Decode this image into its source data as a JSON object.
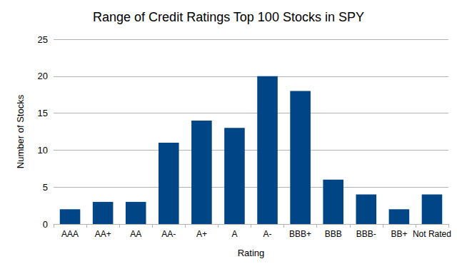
{
  "chart_data": {
    "type": "bar",
    "title": "Range of Credit Ratings Top 100 Stocks in SPY",
    "x_label": "Rating",
    "y_label": "Number of Stocks",
    "categories": [
      "AAA",
      "AA+",
      "AA",
      "AA-",
      "A+",
      "A",
      "A-",
      "BBB+",
      "BBB",
      "BBB-",
      "BB+",
      "Not Rated"
    ],
    "values": [
      2,
      3,
      3,
      11,
      14,
      13,
      20,
      18,
      6,
      4,
      2,
      4
    ],
    "color": "#004586",
    "ylim": [
      0,
      25
    ],
    "yticks": [
      0,
      5,
      10,
      15,
      20,
      25
    ],
    "grid": true
  }
}
